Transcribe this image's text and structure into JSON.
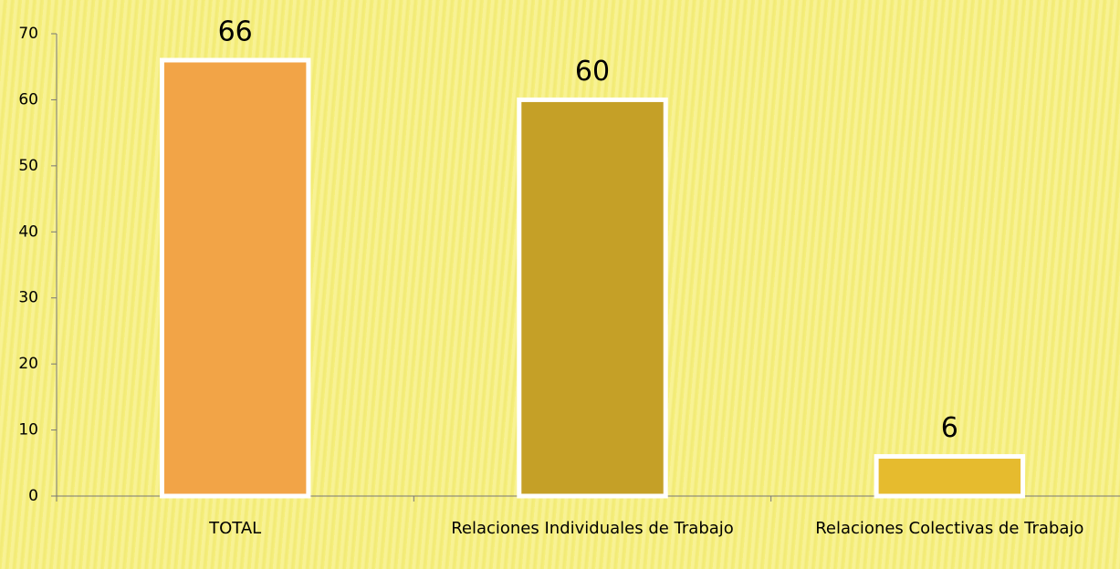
{
  "chart_data": {
    "type": "bar",
    "categories": [
      "TOTAL",
      "Relaciones Individuales de Trabajo",
      "Relaciones Colectivas de Trabajo"
    ],
    "values": [
      66,
      60,
      6
    ],
    "colors": [
      "#f2a447",
      "#c5a027",
      "#e6bb2e"
    ],
    "ylim": [
      0,
      70
    ],
    "yticks": [
      0,
      10,
      20,
      30,
      40,
      50,
      60,
      70
    ],
    "grid": false
  }
}
